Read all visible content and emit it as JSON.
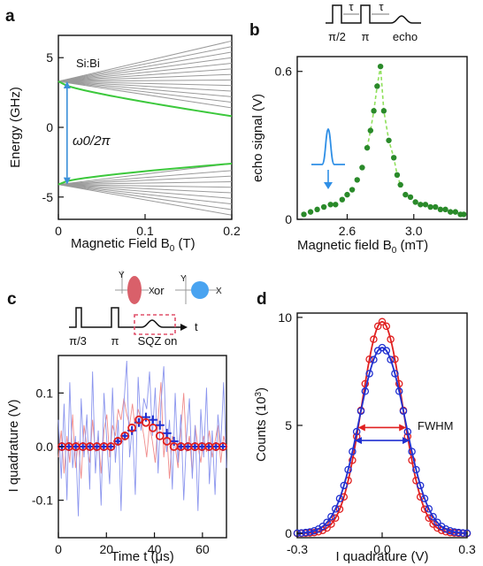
{
  "panels": [
    "a",
    "b",
    "c",
    "d"
  ],
  "chart_data": [
    {
      "panel": "a",
      "type": "line",
      "title": "",
      "annotation": "Si:Bi",
      "gap_label": "ω0/2π",
      "xlabel": "Magnetic Field B",
      "xlabel_sub": "0",
      "xlabel_unit": " (T)",
      "ylabel": "Energy (GHz)",
      "xlim": [
        0,
        0.2
      ],
      "ylim": [
        -6.6,
        6.6
      ],
      "xticks": [
        0,
        0.1,
        0.2
      ],
      "xticklabels": [
        "0",
        "0.1",
        "0.2"
      ],
      "yticks": [
        -5,
        0,
        5
      ],
      "yticklabels": [
        "-5",
        "0",
        "5"
      ],
      "colors": {
        "gray": "#9a9a9a",
        "green": "#3cc83c",
        "arrow": "#3a8fd9"
      },
      "upper_start": 3.3,
      "lower_start": -4.1,
      "upper_ends": [
        6.2,
        5.8,
        5.4,
        5.0,
        4.6,
        4.2,
        3.8,
        3.4,
        3.0,
        2.6,
        2.2,
        1.8,
        1.4
      ],
      "lower_ends": [
        -2.6,
        -3.1,
        -3.5,
        -3.9,
        -4.3,
        -4.7,
        -5.1,
        -5.5,
        -5.9,
        -6.3
      ],
      "green_upper_end": 0.8,
      "green_lower_end": -2.6
    },
    {
      "panel": "b",
      "type": "scatter",
      "title": "",
      "xlabel": "Magnetic field B",
      "xlabel_sub": "0",
      "xlabel_unit": " (mT)",
      "ylabel": "echo signal (V)",
      "xlim": [
        2.3,
        3.32
      ],
      "ylim": [
        0,
        0.66
      ],
      "xticks": [
        2.6,
        3.0
      ],
      "xticklabels": [
        "2.6",
        "3.0"
      ],
      "yticks": [
        0,
        0.6
      ],
      "yticklabels": [
        "0",
        "0.6"
      ],
      "pulse_labels": [
        "π/2",
        "τ",
        "π",
        "τ",
        "echo"
      ],
      "colors": {
        "point": "#2a8a2a",
        "dash": "#8fe05a",
        "inset": "#2f8fe6"
      },
      "x": [
        2.34,
        2.38,
        2.42,
        2.46,
        2.5,
        2.53,
        2.57,
        2.6,
        2.63,
        2.66,
        2.69,
        2.72,
        2.74,
        2.76,
        2.78,
        2.8,
        2.82,
        2.85,
        2.88,
        2.9,
        2.92,
        2.95,
        2.98,
        3.01,
        3.04,
        3.07,
        3.1,
        3.13,
        3.16,
        3.19,
        3.22,
        3.25,
        3.28,
        3.3
      ],
      "y": [
        0.02,
        0.03,
        0.04,
        0.05,
        0.06,
        0.06,
        0.08,
        0.1,
        0.12,
        0.16,
        0.21,
        0.29,
        0.36,
        0.44,
        0.54,
        0.62,
        0.44,
        0.32,
        0.25,
        0.18,
        0.14,
        0.1,
        0.09,
        0.07,
        0.06,
        0.06,
        0.05,
        0.05,
        0.04,
        0.04,
        0.03,
        0.03,
        0.02,
        0.02
      ]
    },
    {
      "panel": "c",
      "type": "line",
      "title": "",
      "xlabel": "Time t (μs)",
      "ylabel": "I quadrature (V)",
      "xlim": [
        0,
        70
      ],
      "ylim": [
        -0.17,
        0.17
      ],
      "xticks": [
        0,
        20,
        40,
        60
      ],
      "xticklabels": [
        "0",
        "20",
        "40",
        "60"
      ],
      "yticks": [
        -0.1,
        0.0,
        0.1
      ],
      "yticklabels": [
        "-0.1",
        "0.0",
        "0.1"
      ],
      "pulse_labels": [
        "π/3",
        "π",
        "SQZ on",
        "t",
        "or"
      ],
      "axis_letters": [
        "Y",
        "X",
        "Y",
        "X"
      ],
      "colors": {
        "red": "#e02020",
        "blue": "#2030d0",
        "red_light": "#f08c8c",
        "blue_light": "#8c96ee",
        "ellipse": "#d9606a",
        "circle": "#49a3f0"
      },
      "blue_marker_y": [
        0,
        0,
        0,
        0,
        0,
        0,
        0,
        0,
        0.01,
        0.02,
        0.03,
        0.045,
        0.055,
        0.05,
        0.04,
        0.025,
        0.01,
        0,
        0,
        0,
        0,
        0,
        0,
        0
      ],
      "red_circle_y": [
        0,
        0,
        0,
        0,
        0,
        0,
        0,
        0,
        0.01,
        0.02,
        0.035,
        0.05,
        0.045,
        0.035,
        0.02,
        0.01,
        0,
        0,
        0,
        0,
        0,
        0,
        0,
        0
      ],
      "blue_trace_y": [
        0.05,
        -0.06,
        0.08,
        -0.1,
        0.12,
        -0.04,
        0.02,
        -0.13,
        0.09,
        -0.02,
        0.06,
        -0.08,
        0.14,
        -0.05,
        0.03,
        -0.11,
        0.1,
        0.01,
        -0.07,
        0.11,
        -0.03,
        0.05,
        -0.12,
        0.08,
        0.16,
        -0.02,
        0.04,
        -0.09,
        0.13,
        0.03,
        0.09,
        0.07,
        0.14,
        0.02,
        0.11,
        -0.05,
        0.08,
        0.15,
        -0.01,
        0.05,
        -0.08,
        0.1,
        -0.03,
        0.06,
        -0.1,
        0.02,
        0.09,
        -0.06,
        0.04,
        -0.12,
        0.07,
        -0.02,
        0.11,
        -0.07,
        0.03,
        -0.09,
        0.06,
        0.0,
        0.12,
        -0.04
      ],
      "red_trace_y": [
        -0.02,
        0.03,
        -0.05,
        0.02,
        -0.03,
        0.06,
        -0.04,
        0.01,
        -0.06,
        0.04,
        0.0,
        -0.03,
        0.05,
        -0.01,
        0.02,
        -0.05,
        0.03,
        0.06,
        -0.02,
        0.04,
        0.02,
        0.07,
        0.05,
        0.09,
        0.06,
        0.04,
        0.08,
        0.03,
        0.07,
        0.05,
        0.02,
        -0.02,
        0.04,
        0.01,
        -0.03,
        0.05,
        0.12,
        -0.02,
        0.03,
        -0.06,
        0.02,
        0.0,
        -0.04,
        0.03,
        0.1,
        -0.01,
        0.02,
        -0.05,
        0.04,
        0.0,
        -0.03,
        0.02,
        -0.01,
        0.03,
        -0.02,
        0.01,
        0.04,
        -0.03,
        0.02,
        0.0
      ]
    },
    {
      "panel": "d",
      "type": "line",
      "title": "",
      "xlabel": "I quadrature (V)",
      "ylabel": "Counts (10",
      "ylabel_sup": "3",
      "ylabel_tail": ")",
      "annotation": "FWHM",
      "xlim": [
        -0.3,
        0.3
      ],
      "ylim": [
        0,
        10
      ],
      "xticks": [
        -0.3,
        0.0,
        0.3
      ],
      "xticklabels": [
        "-0.3",
        "0.0",
        "0.3"
      ],
      "yticks": [
        0,
        5,
        10
      ],
      "yticklabels": [
        "0",
        "5",
        "10"
      ],
      "colors": {
        "red": "#e02020",
        "blue": "#2030d0"
      },
      "series": [
        {
          "color": "red",
          "amplitude": 9.8,
          "sigma": 0.072
        },
        {
          "color": "blue",
          "amplitude": 8.6,
          "sigma": 0.082
        }
      ],
      "fwhm_red": [
        -0.085,
        0.085
      ],
      "fwhm_blue": [
        -0.097,
        0.097
      ]
    }
  ]
}
